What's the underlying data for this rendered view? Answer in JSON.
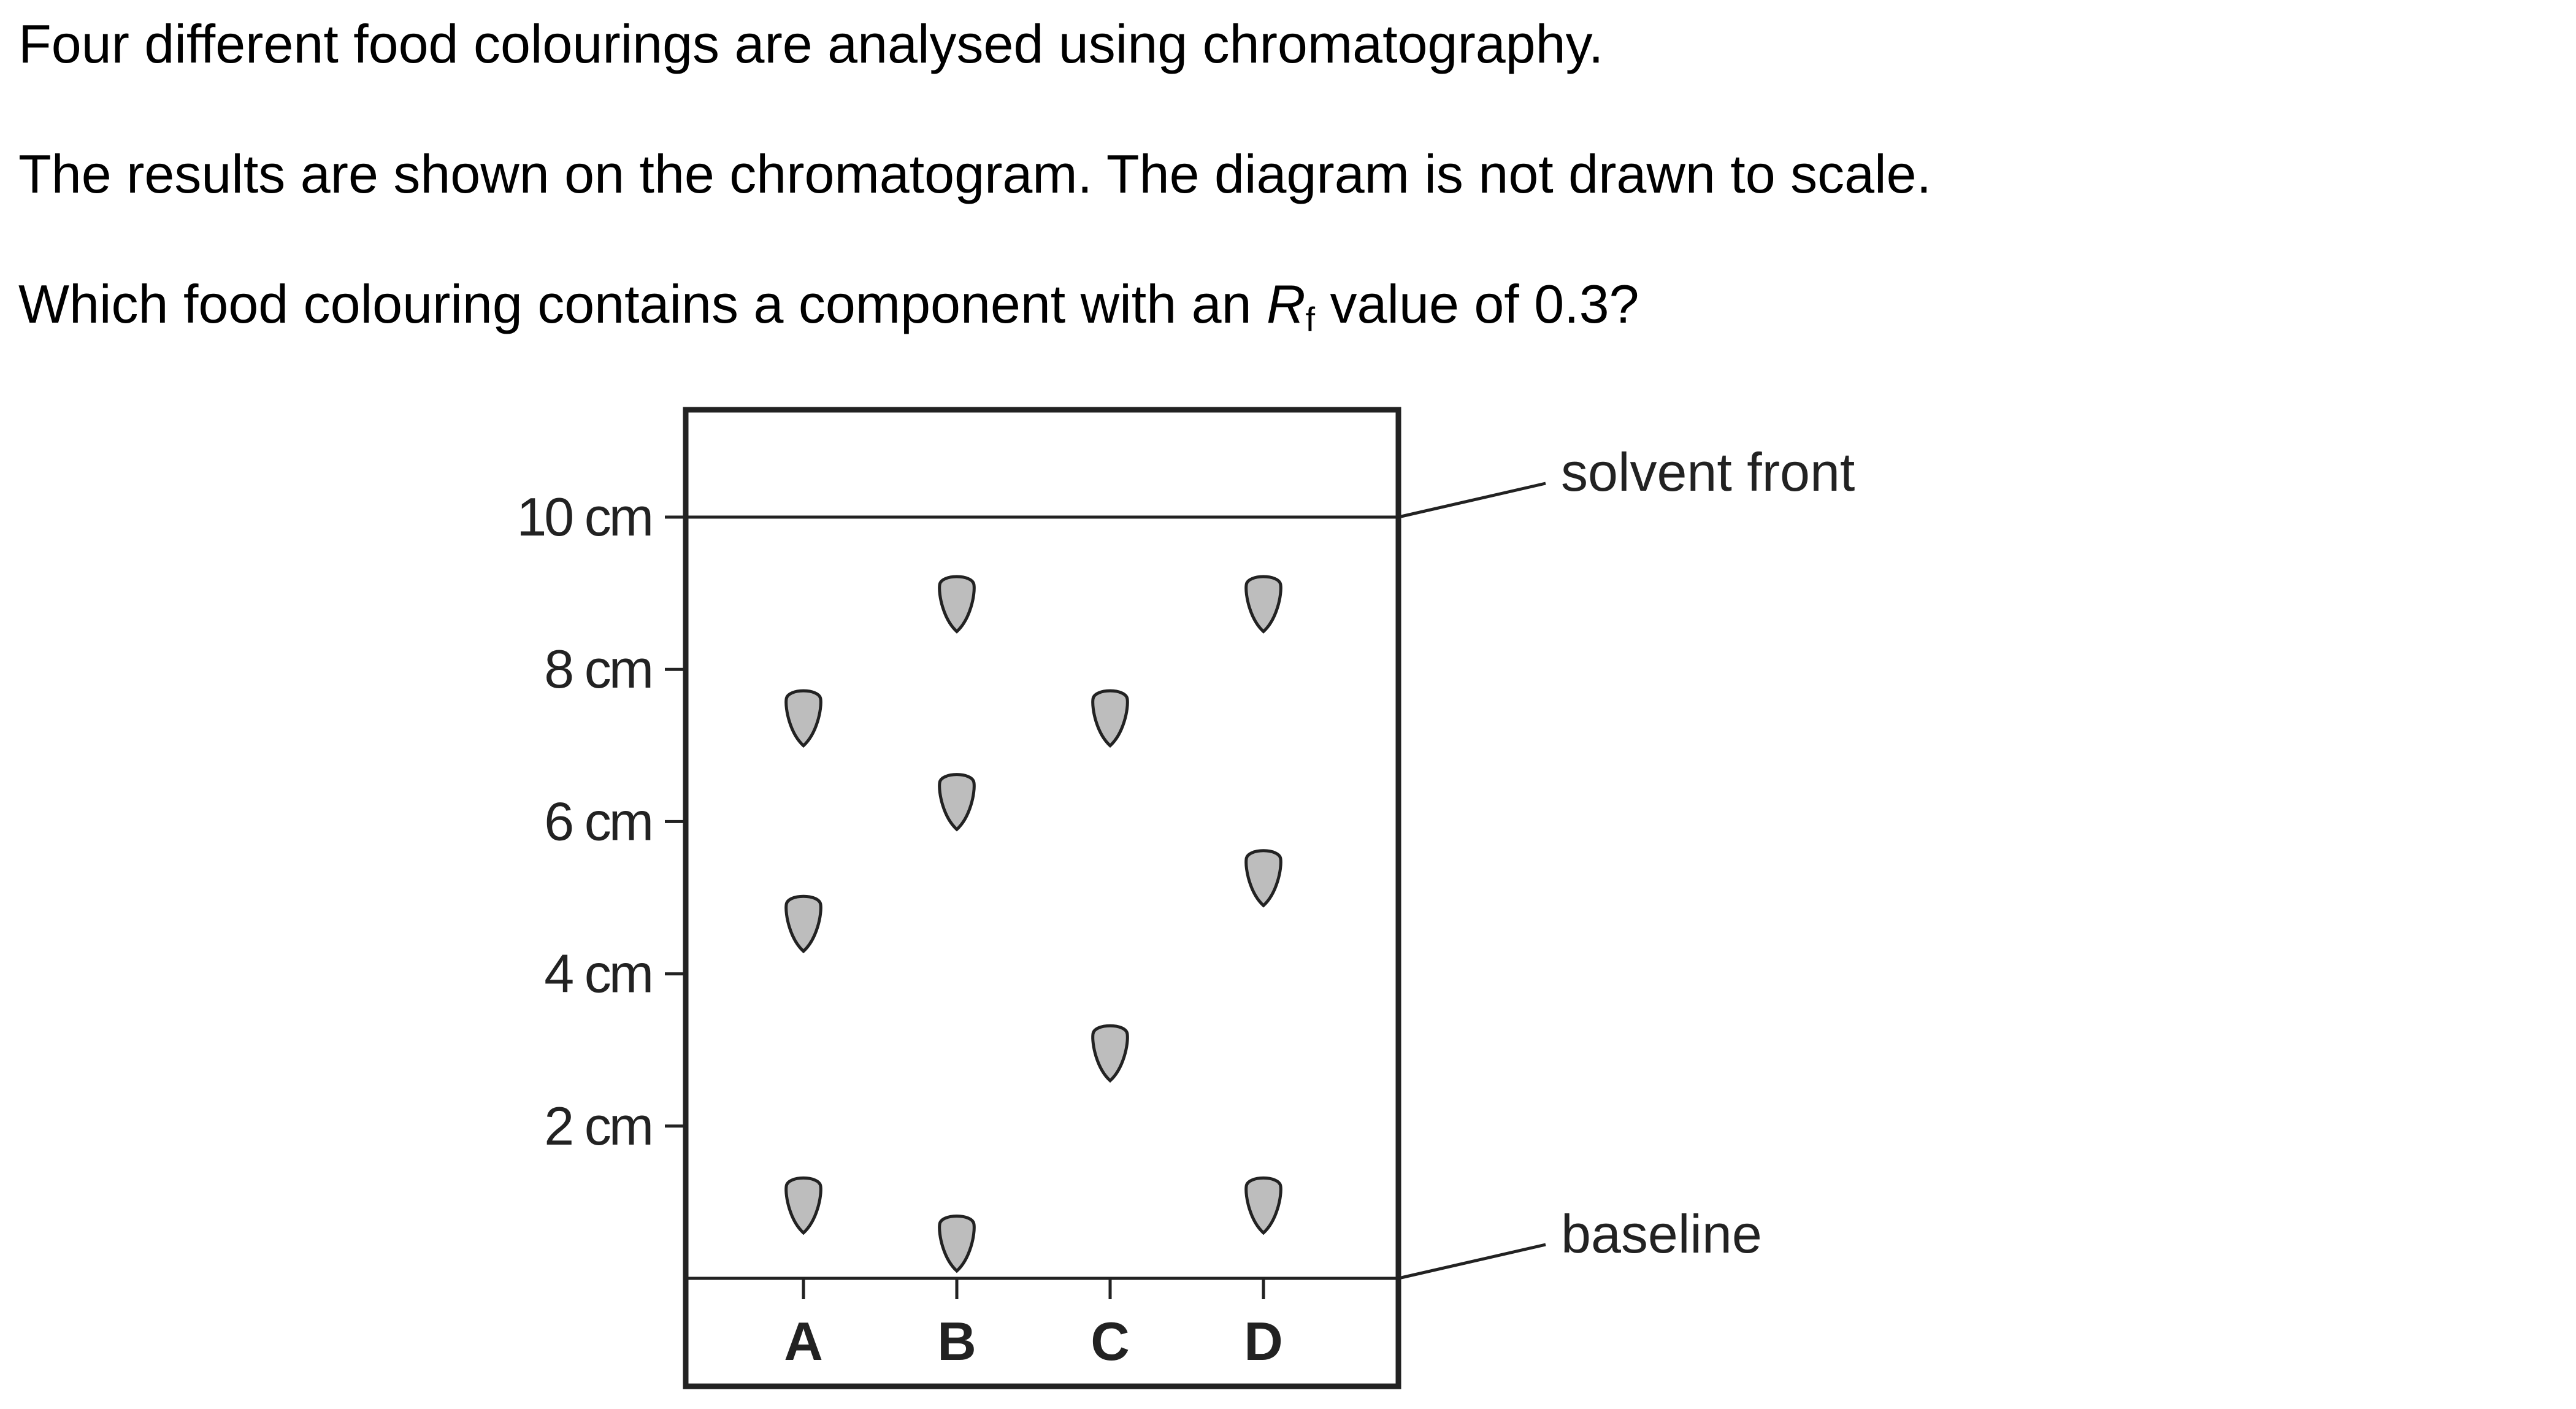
{
  "question": {
    "line1": "Four different food colourings are analysed using chromatography.",
    "line2": "The results are shown on the chromatogram. The diagram is not drawn to scale.",
    "line3_before": "Which food colouring contains a component with an ",
    "rf_symbol": "R",
    "rf_subscript": "f",
    "line3_after": " value of 0.3?"
  },
  "chromatogram": {
    "axis_ticks": [
      {
        "label": "10 cm",
        "value_cm": 10
      },
      {
        "label": "8 cm",
        "value_cm": 8
      },
      {
        "label": "6 cm",
        "value_cm": 6
      },
      {
        "label": "4 cm",
        "value_cm": 4
      },
      {
        "label": "2 cm",
        "value_cm": 2
      }
    ],
    "solvent_front_label": "solvent front",
    "baseline_label": "baseline",
    "spot_color": "#bdbdbd",
    "lanes": [
      {
        "label": "A",
        "spots_cm": [
          7.4,
          4.7,
          1.0
        ]
      },
      {
        "label": "B",
        "spots_cm": [
          8.9,
          6.3,
          0.5
        ]
      },
      {
        "label": "C",
        "spots_cm": [
          7.4,
          3.0
        ]
      },
      {
        "label": "D",
        "spots_cm": [
          8.9,
          5.3,
          1.0
        ]
      }
    ]
  }
}
